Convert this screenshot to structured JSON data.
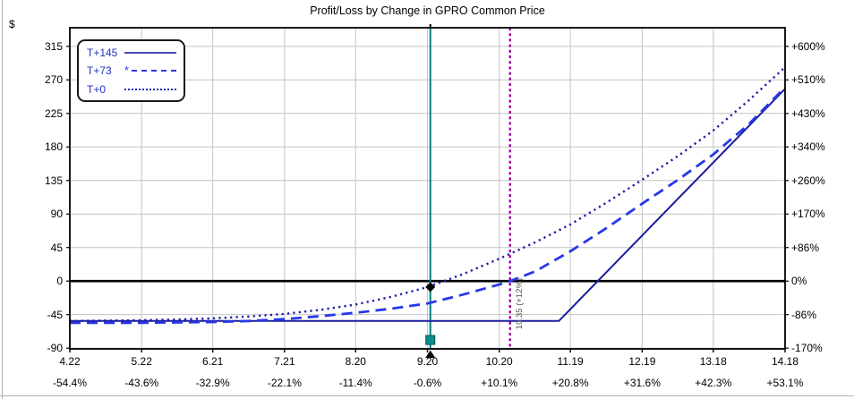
{
  "title": "Profit/Loss by Change in GPRO Common Price",
  "axes": {
    "dollar_axis": {
      "unit": "$",
      "values": [
        315,
        270,
        225,
        180,
        135,
        90,
        45,
        0,
        -45,
        -90
      ],
      "labels": [
        "315",
        "270",
        "225",
        "180",
        "135",
        "90",
        "45",
        "0",
        "-45",
        "-90"
      ]
    },
    "percent_axis": {
      "labels": [
        "+600%",
        "+510%",
        "+430%",
        "+340%",
        "+260%",
        "+170%",
        "+86%",
        "0%",
        "-86%",
        "-170%"
      ]
    },
    "price_axis": {
      "values": [
        4.22,
        5.22,
        6.21,
        7.21,
        8.2,
        9.2,
        10.2,
        11.19,
        12.19,
        13.18,
        14.18
      ],
      "price_labels": [
        "4.22",
        "5.22",
        "6.21",
        "7.21",
        "8.20",
        "9.20",
        "10.20",
        "11.19",
        "12.19",
        "13.18",
        "14.18"
      ],
      "percent_labels": [
        "-54.4%",
        "-43.6%",
        "-32.9%",
        "-22.1%",
        "-11.4%",
        "-0.6%",
        "+10.1%",
        "+20.8%",
        "+31.6%",
        "+42.3%",
        "+53.1%"
      ]
    }
  },
  "legend": {
    "items": [
      {
        "label": "T+145",
        "style": "solid"
      },
      {
        "label": "T+73",
        "style": "dashed",
        "marker": "*"
      },
      {
        "label": "T+0",
        "style": "dotted"
      }
    ]
  },
  "chart_data": {
    "type": "line",
    "title": "Profit/Loss by Change in GPRO Common Price",
    "x_range": [
      4.22,
      14.18
    ],
    "y_range_dollars": [
      -91,
      340
    ],
    "grid": true,
    "legend_position": "top-left",
    "zero_line": 0,
    "series": [
      {
        "name": "T+145",
        "style": "solid",
        "color": "#1b1b9e",
        "width": 2,
        "points": [
          [
            4.22,
            -53.5
          ],
          [
            11.03,
            -53.5
          ],
          [
            14.18,
            258
          ]
        ]
      },
      {
        "name": "T+73",
        "style": "dashed",
        "color": "#2638e6",
        "width": 2.8,
        "dash": "12 7",
        "points": [
          [
            4.22,
            -56
          ],
          [
            5.22,
            -56
          ],
          [
            6.21,
            -55
          ],
          [
            6.71,
            -53.5
          ],
          [
            7.21,
            -51
          ],
          [
            7.71,
            -47
          ],
          [
            8.2,
            -42.5
          ],
          [
            8.7,
            -37
          ],
          [
            9.2,
            -30
          ],
          [
            9.7,
            -18
          ],
          [
            10.2,
            -4.5
          ],
          [
            10.35,
            0
          ],
          [
            10.7,
            13
          ],
          [
            11.19,
            40
          ],
          [
            11.69,
            71
          ],
          [
            12.19,
            104
          ],
          [
            12.69,
            136
          ],
          [
            13.18,
            170
          ],
          [
            13.68,
            211
          ],
          [
            14.18,
            260
          ]
        ]
      },
      {
        "name": "T+0",
        "style": "dotted",
        "color": "#1b1bae",
        "width": 2.4,
        "dash": "2.2 4.2",
        "points": [
          [
            4.22,
            -53.5
          ],
          [
            5.22,
            -52.5
          ],
          [
            5.72,
            -51.5
          ],
          [
            6.21,
            -50
          ],
          [
            6.71,
            -47.5
          ],
          [
            7.21,
            -44
          ],
          [
            7.71,
            -38.5
          ],
          [
            8.2,
            -31.5
          ],
          [
            8.7,
            -21
          ],
          [
            9.2,
            -8
          ],
          [
            9.7,
            9.5
          ],
          [
            10.2,
            30
          ],
          [
            10.7,
            52
          ],
          [
            11.19,
            76
          ],
          [
            11.69,
            105
          ],
          [
            12.19,
            136
          ],
          [
            12.69,
            168
          ],
          [
            13.18,
            202
          ],
          [
            13.68,
            243
          ],
          [
            14.18,
            287
          ]
        ]
      }
    ],
    "current_price_marker": {
      "price": 9.24,
      "color": "#007f7f",
      "point_value": -8
    },
    "target_price_marker": {
      "price": 10.35,
      "label": "10.35 (+12%)",
      "color": "#990099"
    },
    "style": {
      "grid_color": "#c4c4c4",
      "border_color": "#000000",
      "zero_line_color": "#000000",
      "annotation_color": "#555555"
    }
  }
}
